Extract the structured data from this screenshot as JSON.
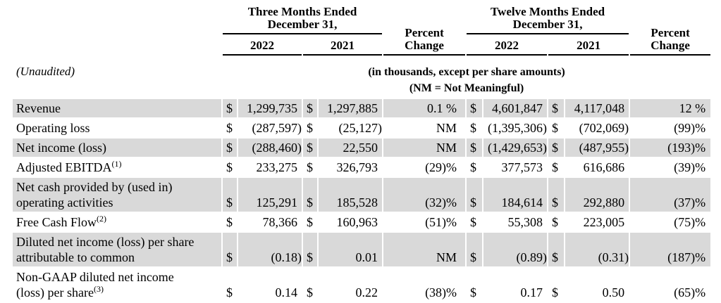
{
  "table": {
    "currency_symbol": "$",
    "unaudited_label": "(Unaudited)",
    "units_note": "(in thousands, except per share amounts)",
    "nm_note": "(NM = Not Meaningful)",
    "pct_header_line1": "Percent",
    "pct_header_line2": "Change",
    "col_groups": [
      {
        "title_line1": "Three Months Ended",
        "title_line2": "December 31,",
        "years": [
          "2022",
          "2021"
        ]
      },
      {
        "title_line1": "Twelve Months Ended",
        "title_line2": "December 31,",
        "years": [
          "2022",
          "2021"
        ]
      }
    ],
    "rows": [
      {
        "label_lines": [
          "Revenue"
        ],
        "sup": "",
        "shaded": true,
        "tm_2022": "1,299,735",
        "tm_2021": "1,297,885",
        "tm_pct": "0.1 %",
        "twm_2022": "4,601,847",
        "twm_2021": "4,117,048",
        "twm_pct": "12 %"
      },
      {
        "label_lines": [
          "Operating loss"
        ],
        "sup": "",
        "shaded": false,
        "tm_2022": "(287,597)",
        "tm_2021": "(25,127)",
        "tm_pct": "NM",
        "twm_2022": "(1,395,306)",
        "twm_2021": "(702,069)",
        "twm_pct": "(99)%"
      },
      {
        "label_lines": [
          "Net income (loss)"
        ],
        "sup": "",
        "shaded": true,
        "tm_2022": "(288,460)",
        "tm_2021": "22,550",
        "tm_pct": "NM",
        "twm_2022": "(1,429,653)",
        "twm_2021": "(487,955)",
        "twm_pct": "(193)%"
      },
      {
        "label_lines": [
          "Adjusted EBITDA"
        ],
        "sup": "(1)",
        "shaded": false,
        "tm_2022": "233,275",
        "tm_2021": "326,793",
        "tm_pct": "(29)%",
        "twm_2022": "377,573",
        "twm_2021": "616,686",
        "twm_pct": "(39)%"
      },
      {
        "label_lines": [
          "Net cash provided by (used in)",
          "operating activities"
        ],
        "sup": "",
        "shaded": true,
        "tm_2022": "125,291",
        "tm_2021": "185,528",
        "tm_pct": "(32)%",
        "twm_2022": "184,614",
        "twm_2021": "292,880",
        "twm_pct": "(37)%"
      },
      {
        "label_lines": [
          "Free Cash Flow"
        ],
        "sup": "(2)",
        "shaded": false,
        "tm_2022": "78,366",
        "tm_2021": "160,963",
        "tm_pct": "(51)%",
        "twm_2022": "55,308",
        "twm_2021": "223,005",
        "twm_pct": "(75)%"
      },
      {
        "label_lines": [
          "Diluted net income (loss) per share",
          "attributable to common"
        ],
        "sup": "",
        "shaded": true,
        "tm_2022": "(0.18)",
        "tm_2021": "0.01",
        "tm_pct": "NM",
        "twm_2022": "(0.89)",
        "twm_2021": "(0.31)",
        "twm_pct": "(187)%"
      },
      {
        "label_lines": [
          "Non-GAAP diluted net income",
          "(loss) per share"
        ],
        "sup": "(3)",
        "shaded": false,
        "tm_2022": "0.14",
        "tm_2021": "0.22",
        "tm_pct": "(38)%",
        "twm_2022": "0.17",
        "twm_2021": "0.50",
        "twm_pct": "(65)%"
      }
    ]
  }
}
